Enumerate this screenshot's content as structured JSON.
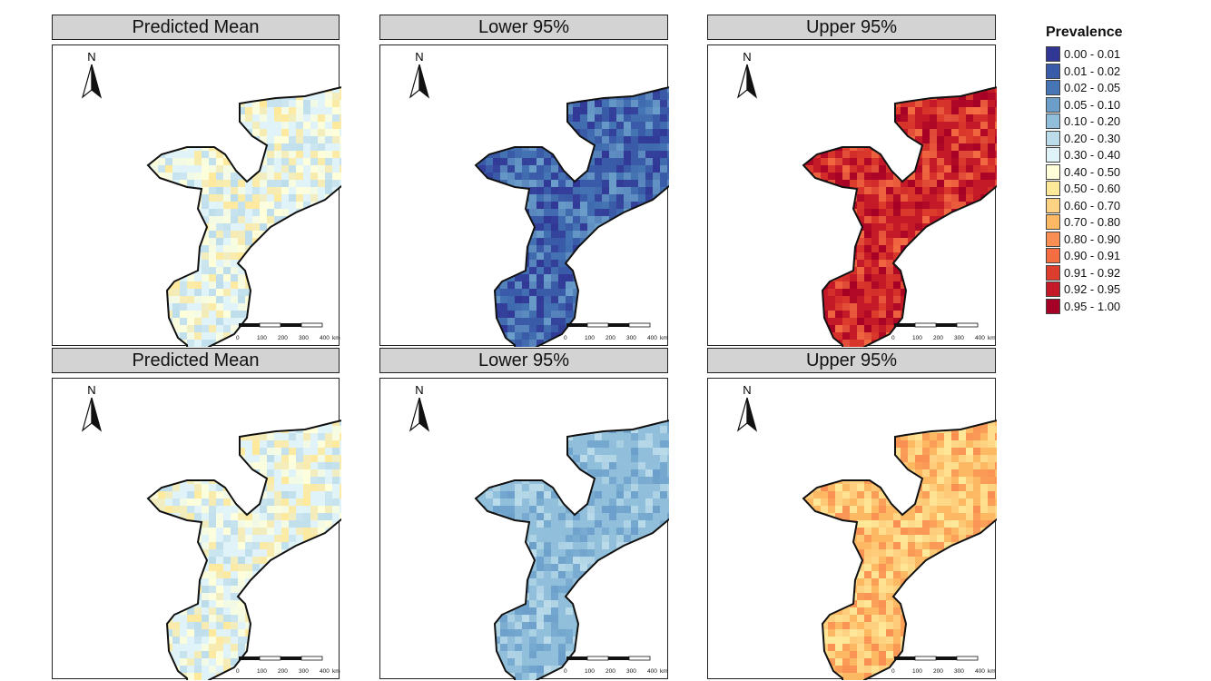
{
  "panels": [
    {
      "title": "Predicted Mean",
      "palette": "mean1"
    },
    {
      "title": "Lower 95%",
      "palette": "lower1"
    },
    {
      "title": "Upper 95%",
      "palette": "upper1"
    },
    {
      "title": "Predicted Mean",
      "palette": "mean2"
    },
    {
      "title": "Lower 95%",
      "palette": "lower2"
    },
    {
      "title": "Upper 95%",
      "palette": "upper2"
    }
  ],
  "north_label": "N",
  "scale_bar": {
    "ticks": [
      "0",
      "100",
      "200",
      "300",
      "400"
    ],
    "unit": "km"
  },
  "legend": {
    "title": "Prevalence",
    "items": [
      {
        "label": "0.00 - 0.01",
        "color": "#313695"
      },
      {
        "label": "0.01 - 0.02",
        "color": "#3a5ba8"
      },
      {
        "label": "0.02 - 0.05",
        "color": "#4575b4"
      },
      {
        "label": "0.05 - 0.10",
        "color": "#6b9fca"
      },
      {
        "label": "0.10 - 0.20",
        "color": "#91bfdb"
      },
      {
        "label": "0.20 - 0.30",
        "color": "#bcdcea"
      },
      {
        "label": "0.30 - 0.40",
        "color": "#e0f3f8"
      },
      {
        "label": "0.40 - 0.50",
        "color": "#ffffd9"
      },
      {
        "label": "0.50 - 0.60",
        "color": "#fee99a"
      },
      {
        "label": "0.60 - 0.70",
        "color": "#fdd383"
      },
      {
        "label": "0.70 - 0.80",
        "color": "#fdb863"
      },
      {
        "label": "0.80 - 0.90",
        "color": "#f98e52"
      },
      {
        "label": "0.90 - 0.91",
        "color": "#f46d43"
      },
      {
        "label": "0.91 - 0.92",
        "color": "#dd3d2d"
      },
      {
        "label": "0.92 - 0.95",
        "color": "#c41a28"
      },
      {
        "label": "0.95 - 1.00",
        "color": "#a50026"
      }
    ]
  },
  "palettes": {
    "mean1": [
      "#e0f3f8",
      "#bcdcea",
      "#ffffd9",
      "#fee99a"
    ],
    "lower1": [
      "#3a5ba8",
      "#4575b4",
      "#313695",
      "#6b9fca"
    ],
    "upper1": [
      "#c41a28",
      "#a50026",
      "#dd3d2d",
      "#f46d43"
    ],
    "mean2": [
      "#e0f3f8",
      "#bcdcea",
      "#ffffd9",
      "#fee99a"
    ],
    "lower2": [
      "#91bfdb",
      "#6b9fca",
      "#bcdcea",
      "#91bfdb"
    ],
    "upper2": [
      "#fdb863",
      "#fdd383",
      "#f98e52",
      "#fee99a"
    ]
  }
}
